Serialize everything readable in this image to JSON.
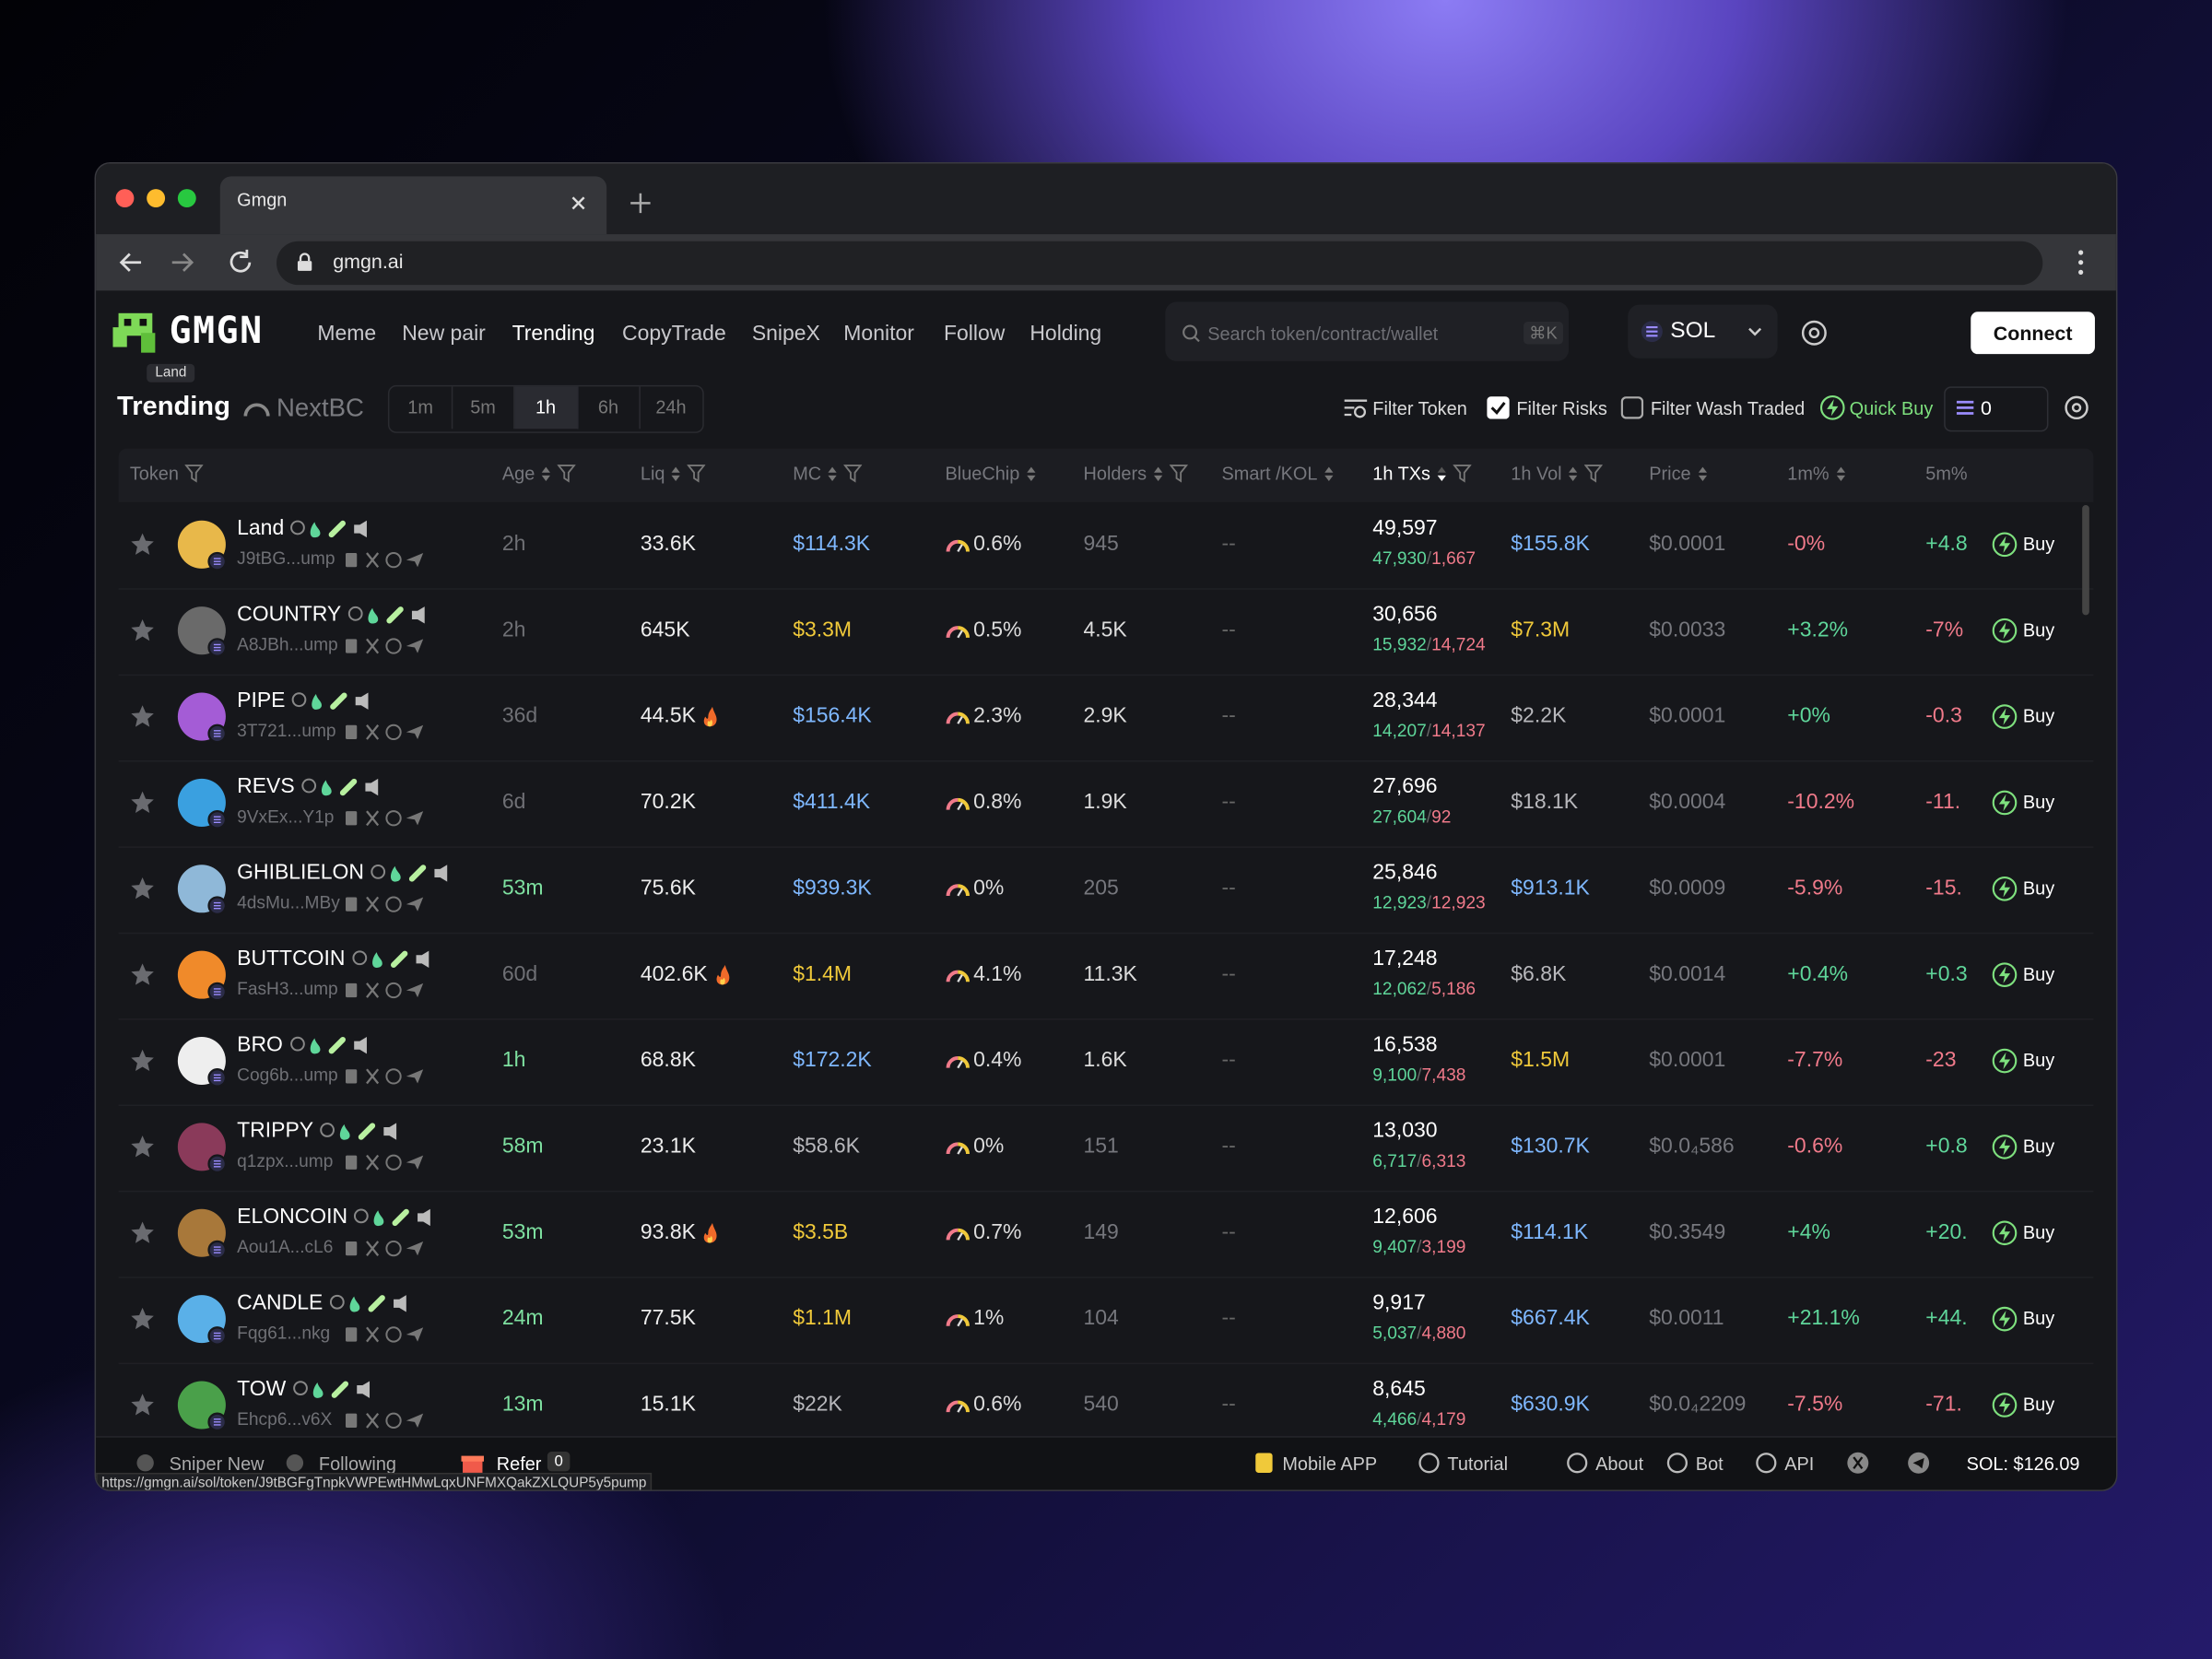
{
  "browser": {
    "tab_title": "Gmgn",
    "url": "gmgn.ai",
    "status_url": "https://gmgn.ai/sol/token/J9tBGFgTnpkVWPEwtHMwLqxUNFMXQakZXLQUP5y5pump"
  },
  "header": {
    "logo": "GMGN",
    "logo_tooltip": "Land",
    "nav": [
      "Meme",
      "New pair",
      "Trending",
      "CopyTrade",
      "SnipeX",
      "Monitor",
      "Follow",
      "Holding"
    ],
    "search_placeholder": "Search token/contract/wallet",
    "search_shortcut": "⌘K",
    "chain": "SOL",
    "connect": "Connect"
  },
  "toolbar": {
    "title": "Trending",
    "subtitle": "NextBC",
    "timeframes": [
      "1m",
      "5m",
      "1h",
      "6h",
      "24h"
    ],
    "filter_token": "Filter Token",
    "filter_risks": "Filter Risks",
    "filter_wash": "Filter Wash Traded",
    "quick_buy": "Quick Buy",
    "amount": "0"
  },
  "table": {
    "columns": [
      "Token",
      "Age",
      "Liq",
      "MC",
      "BlueChip",
      "Holders",
      "Smart /KOL",
      "1h TXs",
      "1h Vol",
      "Price",
      "1m%",
      "5m%"
    ],
    "buy_label": "Buy",
    "rows": [
      {
        "name": "Land",
        "address": "J9tBG...ump",
        "age": "2h",
        "liq": "33.6K",
        "mc": "$114.3K",
        "bluechip": "0.6%",
        "holders": "945",
        "smart": "--",
        "txs": "49,597",
        "buys": "47,930",
        "sells": "1,667",
        "vol": "$155.8K",
        "price": "$0.0001",
        "m1": "-0%",
        "m5": "+4.8"
      },
      {
        "name": "COUNTRY",
        "address": "A8JBh...ump",
        "age": "2h",
        "liq": "645K",
        "mc": "$3.3M",
        "bluechip": "0.5%",
        "holders": "4.5K",
        "smart": "--",
        "txs": "30,656",
        "buys": "15,932",
        "sells": "14,724",
        "vol": "$7.3M",
        "price": "$0.0033",
        "m1": "+3.2%",
        "m5": "-7%"
      },
      {
        "name": "PIPE",
        "address": "3T721...ump",
        "age": "36d",
        "liq": "44.5K",
        "hot": true,
        "mc": "$156.4K",
        "bluechip": "2.3%",
        "holders": "2.9K",
        "smart": "--",
        "txs": "28,344",
        "buys": "14,207",
        "sells": "14,137",
        "vol": "$2.2K",
        "price": "$0.0001",
        "m1": "+0%",
        "m5": "-0.3"
      },
      {
        "name": "REVS",
        "address": "9VxEx...Y1p",
        "age": "6d",
        "liq": "70.2K",
        "mc": "$411.4K",
        "bluechip": "0.8%",
        "holders": "1.9K",
        "smart": "--",
        "txs": "27,696",
        "buys": "27,604",
        "sells": "92",
        "vol": "$18.1K",
        "price": "$0.0004",
        "m1": "-10.2%",
        "m5": "-11."
      },
      {
        "name": "GHIBLIELON",
        "address": "4dsMu...MBy",
        "age": "53m",
        "liq": "75.6K",
        "mc": "$939.3K",
        "bluechip": "0%",
        "holders": "205",
        "smart": "--",
        "txs": "25,846",
        "buys": "12,923",
        "sells": "12,923",
        "vol": "$913.1K",
        "price": "$0.0009",
        "m1": "-5.9%",
        "m5": "-15."
      },
      {
        "name": "BUTTCOIN",
        "address": "FasH3...ump",
        "age": "60d",
        "liq": "402.6K",
        "hot": true,
        "mc": "$1.4M",
        "bluechip": "4.1%",
        "holders": "11.3K",
        "smart": "--",
        "txs": "17,248",
        "buys": "12,062",
        "sells": "5,186",
        "vol": "$6.8K",
        "price": "$0.0014",
        "m1": "+0.4%",
        "m5": "+0.3"
      },
      {
        "name": "BRO",
        "address": "Cog6b...ump",
        "age": "1h",
        "liq": "68.8K",
        "mc": "$172.2K",
        "bluechip": "0.4%",
        "holders": "1.6K",
        "smart": "--",
        "txs": "16,538",
        "buys": "9,100",
        "sells": "7,438",
        "vol": "$1.5M",
        "price": "$0.0001",
        "m1": "-7.7%",
        "m5": "-23"
      },
      {
        "name": "TRIPPY",
        "address": "q1zpx...ump",
        "age": "58m",
        "liq": "23.1K",
        "mc": "$58.6K",
        "bluechip": "0%",
        "holders": "151",
        "smart": "--",
        "txs": "13,030",
        "buys": "6,717",
        "sells": "6,313",
        "vol": "$130.7K",
        "price": "$0.0₄586",
        "m1": "-0.6%",
        "m5": "+0.8"
      },
      {
        "name": "ELONCOIN",
        "address": "Aou1A...cL6",
        "age": "53m",
        "liq": "93.8K",
        "hot": true,
        "mc": "$3.5B",
        "bluechip": "0.7%",
        "holders": "149",
        "smart": "--",
        "txs": "12,606",
        "buys": "9,407",
        "sells": "3,199",
        "vol": "$114.1K",
        "price": "$0.3549",
        "m1": "+4%",
        "m5": "+20."
      },
      {
        "name": "CANDLE",
        "address": "Fqg61...nkg",
        "age": "24m",
        "liq": "77.5K",
        "mc": "$1.1M",
        "bluechip": "1%",
        "holders": "104",
        "smart": "--",
        "txs": "9,917",
        "buys": "5,037",
        "sells": "4,880",
        "vol": "$667.4K",
        "price": "$0.0011",
        "m1": "+21.1%",
        "m5": "+44."
      },
      {
        "name": "TOW",
        "address": "Ehcp6...v6X",
        "age": "13m",
        "liq": "15.1K",
        "mc": "$22K",
        "bluechip": "0.6%",
        "holders": "540",
        "smart": "--",
        "txs": "8,645",
        "buys": "4,466",
        "sells": "4,179",
        "vol": "$630.9K",
        "price": "$0.0₄2209",
        "m1": "-7.5%",
        "m5": "-71."
      }
    ]
  },
  "footer": {
    "left": [
      "Sniper New",
      "Following",
      "Refer"
    ],
    "refer_count": "0",
    "right": [
      "Mobile APP",
      "Tutorial",
      "About",
      "Bot",
      "API"
    ],
    "sol_price": "SOL: $126.09"
  }
}
